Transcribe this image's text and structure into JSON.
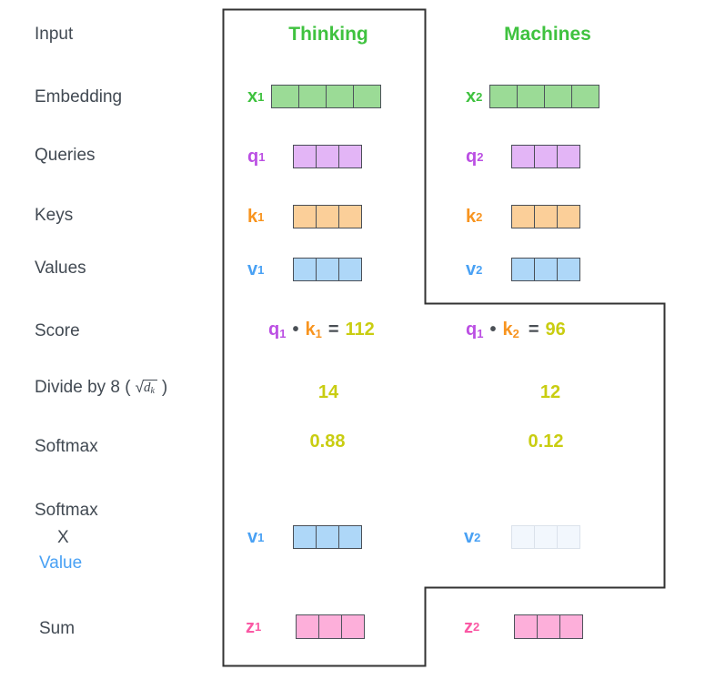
{
  "colors": {
    "outline": "#333333",
    "label_text": "#424a53",
    "green": "#3fc23f",
    "purple": "#bb4fe3",
    "orange": "#f8941f",
    "blue": "#49a1f4",
    "pink": "#fa58a4",
    "yellow": "#c9cd11",
    "dark_operator": "#4a4f55"
  },
  "left_labels": {
    "input": "Input",
    "embedding": "Embedding",
    "queries": "Queries",
    "keys": "Keys",
    "values": "Values",
    "score": "Score",
    "divide_prefix": "Divide by 8 (",
    "divide_sqrt": "√",
    "divide_radicand": "d",
    "divide_radicand_sub": "k",
    "divide_suffix": ")",
    "softmax": "Softmax",
    "softmax_x_line1": "Softmax",
    "softmax_x_line2": "X",
    "softmax_x_line3": "Value",
    "sum": "Sum"
  },
  "columns": {
    "thinking": {
      "header": "Thinking"
    },
    "machines": {
      "header": "Machines"
    }
  },
  "vectors": {
    "x1": {
      "letter": "x",
      "sub": "1",
      "cells": 4,
      "fill": "#9bdb96",
      "stroke": "#4e535b",
      "label_color": "#3fc23f"
    },
    "x2": {
      "letter": "x",
      "sub": "2",
      "cells": 4,
      "fill": "#9bdb96",
      "stroke": "#4e535b",
      "label_color": "#3fc23f"
    },
    "q1": {
      "letter": "q",
      "sub": "1",
      "cells": 3,
      "fill": "#e3b5f6",
      "stroke": "#4a4f57",
      "label_color": "#bb4fe3"
    },
    "q2": {
      "letter": "q",
      "sub": "2",
      "cells": 3,
      "fill": "#e3b5f6",
      "stroke": "#4a4f57",
      "label_color": "#bb4fe3"
    },
    "k1": {
      "letter": "k",
      "sub": "1",
      "cells": 3,
      "fill": "#fbcf99",
      "stroke": "#4a4f57",
      "label_color": "#f8941f"
    },
    "k2": {
      "letter": "k",
      "sub": "2",
      "cells": 3,
      "fill": "#fbcf99",
      "stroke": "#4a4f57",
      "label_color": "#f8941f"
    },
    "v1": {
      "letter": "v",
      "sub": "1",
      "cells": 3,
      "fill": "#aed7f8",
      "stroke": "#4a4f57",
      "label_color": "#49a1f4"
    },
    "v2": {
      "letter": "v",
      "sub": "2",
      "cells": 3,
      "fill": "#aed7f8",
      "stroke": "#4a4f57",
      "label_color": "#49a1f4"
    },
    "v1_weighted": {
      "letter": "v",
      "sub": "1",
      "cells": 3,
      "fill": "#aed7f8",
      "stroke": "#4a4f57",
      "label_color": "#49a1f4"
    },
    "v2_weighted": {
      "letter": "v",
      "sub": "2",
      "cells": 3,
      "fill": "#f2f7fd",
      "stroke": "#dbe2eb",
      "label_color": "#49a1f4"
    },
    "z1": {
      "letter": "z",
      "sub": "1",
      "cells": 3,
      "fill": "#fdafda",
      "stroke": "#4e535b",
      "label_color": "#fa58a4"
    },
    "z2": {
      "letter": "z",
      "sub": "2",
      "cells": 3,
      "fill": "#fdafda",
      "stroke": "#4e535b",
      "label_color": "#fa58a4"
    }
  },
  "calculations": {
    "score1": {
      "q_letter": "q",
      "q_sub": "1",
      "dot": "•",
      "k_letter": "k",
      "k_sub": "1",
      "equals": "=",
      "value": "112"
    },
    "score2": {
      "q_letter": "q",
      "q_sub": "1",
      "dot": "•",
      "k_letter": "k",
      "k_sub": "2",
      "equals": "=",
      "value": "96"
    },
    "divide1": "14",
    "divide2": "12",
    "softmax1": "0.88",
    "softmax2": "0.12"
  }
}
